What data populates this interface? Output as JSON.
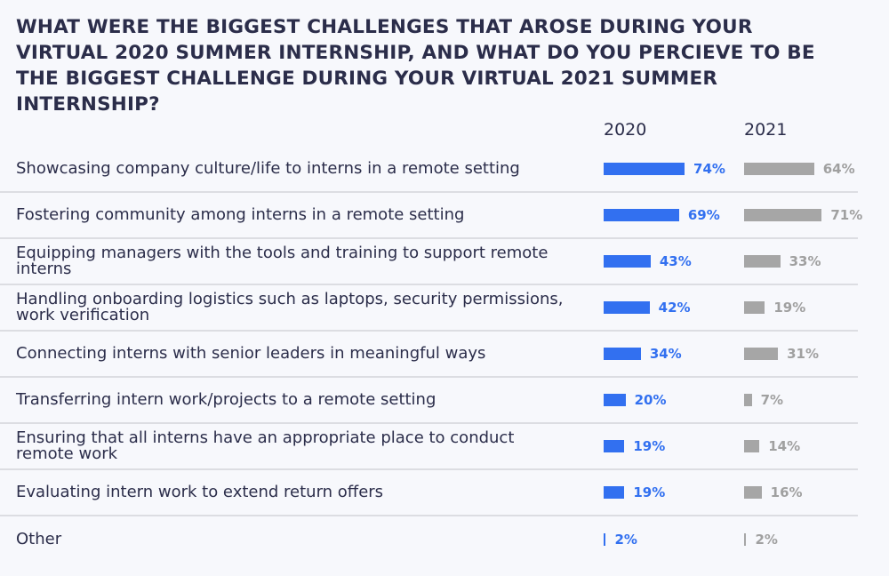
{
  "chart_data": {
    "type": "bar",
    "orientation": "horizontal",
    "title": "WHAT WERE THE BIGGEST CHALLENGES THAT AROSE DURING YOUR VIRTUAL 2020 SUMMER INTERNSHIP, AND WHAT DO YOU PERCIEVE TO BE THE BIGGEST CHALLENGE DURING YOUR VIRTUAL 2021 SUMMER INTERNSHIP?",
    "categories": [
      "Showcasing company culture/life to interns in a remote setting",
      "Fostering community among interns in a remote setting",
      "Equipping managers with the tools and training to support remote interns",
      "Handling onboarding logistics such as laptops, security permissions, work verification",
      "Connecting interns with senior leaders in meaningful ways",
      "Transferring intern work/projects to a remote setting",
      "Ensuring that all interns have an appropriate place to conduct remote work",
      "Evaluating intern work to extend return offers",
      "Other"
    ],
    "series": [
      {
        "name": "2020",
        "color": "#3270f0",
        "values": [
          74,
          69,
          43,
          42,
          34,
          20,
          19,
          19,
          2
        ]
      },
      {
        "name": "2021",
        "color": "#a6a6a6",
        "values": [
          64,
          71,
          33,
          19,
          31,
          7,
          14,
          16,
          2
        ]
      }
    ],
    "unit": "%",
    "xlim": [
      0,
      100
    ],
    "grid": false,
    "legend": "column headers top"
  }
}
